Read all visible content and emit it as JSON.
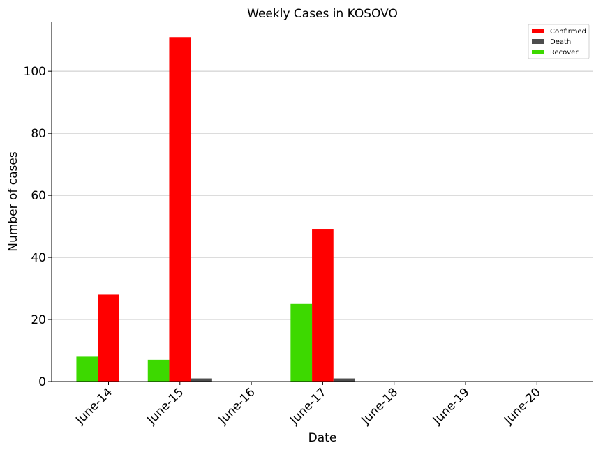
{
  "chart_data": {
    "type": "bar",
    "title": "Weekly Cases in KOSOVO",
    "xlabel": "Date",
    "ylabel": "Number of cases",
    "categories": [
      "June-14",
      "June-15",
      "June-16",
      "June-17",
      "June-18",
      "June-19",
      "June-20"
    ],
    "series": [
      {
        "name": "Confirmed",
        "color": "#ff0000",
        "values": [
          28,
          111,
          0,
          49,
          0,
          0,
          0
        ]
      },
      {
        "name": "Death",
        "color": "#4d4d4d",
        "values": [
          0,
          1,
          0,
          1,
          0,
          0,
          0
        ]
      },
      {
        "name": "Recover",
        "color": "#3dd900",
        "values": [
          8,
          7,
          0,
          25,
          0,
          0,
          0
        ]
      }
    ],
    "ylim": [
      0,
      116
    ],
    "yticks": [
      0,
      20,
      40,
      60,
      80,
      100
    ],
    "grid": "y",
    "legend_position": "top-right"
  }
}
